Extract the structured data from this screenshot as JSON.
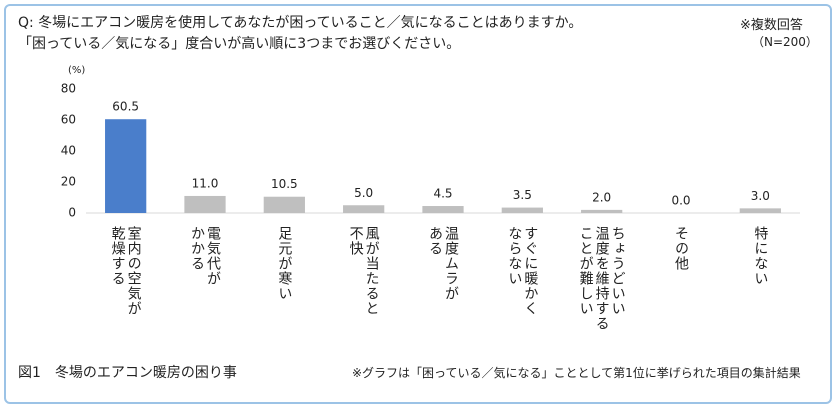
{
  "chart_data": {
    "type": "bar",
    "title": "Q: 冬場にエアコン暖房を使用してあなたが困っていること／気になることはありますか。",
    "subtitle": "「困っている／気になる」度合いが高い順に3つまでお選びください。",
    "annotations": [
      "※複数回答",
      "（N=200）"
    ],
    "y_label": "(%)",
    "categories": [
      "室内の空気が\n乾燥する",
      "電気代が\nかかる",
      "足元が寒い",
      "風が当たると\n不快",
      "温度ムラが\nある",
      "すぐに暖かく\nならない",
      "ちょうどいい\n温度を維持する\nことが難しい",
      "その他",
      "特にない"
    ],
    "values": [
      60.5,
      11.0,
      10.5,
      5.0,
      4.5,
      3.5,
      2.0,
      0.0,
      3.0
    ],
    "value_labels": [
      "60.5",
      "11.0",
      "10.5",
      "5.0",
      "4.5",
      "3.5",
      "2.0",
      "0.0",
      "3.0"
    ],
    "colors": [
      "#4a7ecb",
      "#bfbfbf",
      "#bfbfbf",
      "#bfbfbf",
      "#bfbfbf",
      "#bfbfbf",
      "#bfbfbf",
      "#bfbfbf",
      "#bfbfbf"
    ],
    "ylim": [
      0,
      80
    ],
    "yticks": [
      0,
      20,
      40,
      60,
      80
    ],
    "grid": false,
    "caption": "図1　冬場のエアコン暖房の困り事",
    "footnote": "※グラフは「困っている／気になる」こととして第1位に挙げられた項目の集計結果"
  }
}
